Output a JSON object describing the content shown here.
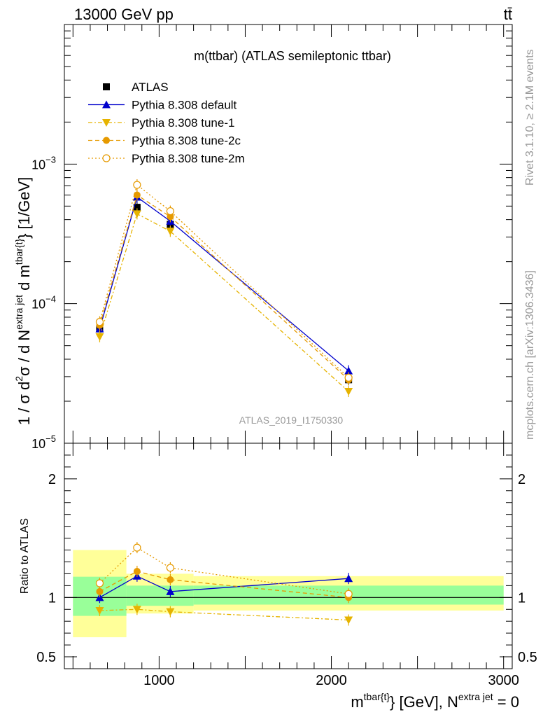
{
  "header": {
    "left": "13000 GeV pp",
    "right": "tt̄"
  },
  "side_text": {
    "rivet": "Rivet 3.1.10, ≥ 2.1M events",
    "mcplots": "mcplots.cern.ch [arXiv:1306.3436]"
  },
  "chart_data": [
    {
      "type": "line",
      "panel": "main",
      "title": "m(ttbar) (ATLAS semileptonic ttbar)",
      "watermark": "ATLAS_2019_I1750330",
      "ylabel": "1 / σ d²σ / d N^{extra jet} d m^{tbar{t}} [1/GeV]",
      "yscale": "log",
      "ylim": [
        1e-05,
        0.01
      ],
      "xlim": [
        450,
        3050
      ],
      "yticks": [
        {
          "base": "10",
          "exp": "−5",
          "value": 1e-05
        },
        {
          "base": "10",
          "exp": "−4",
          "value": 0.0001
        },
        {
          "base": "10",
          "exp": "−3",
          "value": 0.001
        }
      ],
      "legend_position": "top-left",
      "series": [
        {
          "name": "ATLAS",
          "color": "#000000",
          "marker": "square",
          "dash": "none",
          "x": [
            655,
            872,
            1065,
            2100
          ],
          "y": [
            6.6e-05,
            0.00049,
            0.00037,
            2.85e-05
          ],
          "xerr": [
            [
              500,
              810
            ],
            [
              810,
              935
            ],
            [
              935,
              1200
            ],
            [
              1200,
              3000
            ]
          ]
        },
        {
          "name": "Pythia 8.308 default",
          "color": "#0000cc",
          "marker": "triangle-up",
          "dash": "none",
          "x": [
            655,
            872,
            1065,
            2100
          ],
          "y": [
            6.6e-05,
            0.00058,
            0.00039,
            3.3e-05
          ]
        },
        {
          "name": "Pythia 8.308 tune-1",
          "color": "#e6b300",
          "marker": "triangle-down",
          "dash": "6,3,2,3",
          "x": [
            655,
            872,
            1065,
            2100
          ],
          "y": [
            5.8e-05,
            0.00044,
            0.00033,
            2.35e-05
          ]
        },
        {
          "name": "Pythia 8.308 tune-2c",
          "color": "#e69a00",
          "marker": "circle-filled",
          "dash": "6,4",
          "x": [
            655,
            872,
            1065,
            2100
          ],
          "y": [
            7e-05,
            0.0006,
            0.00042,
            2.85e-05
          ]
        },
        {
          "name": "Pythia 8.308 tune-2m",
          "color": "#e69a00",
          "marker": "circle-open",
          "dash": "2,3",
          "x": [
            655,
            872,
            1065,
            2100
          ],
          "y": [
            7.4e-05,
            0.00071,
            0.00046,
            2.95e-05
          ]
        }
      ]
    },
    {
      "type": "line",
      "panel": "ratio",
      "ylabel": "Ratio to ATLAS",
      "xlabel": "m^{tbar{t}} [GeV], N^{extra jet} = 0",
      "ylim": [
        0.4,
        2.3
      ],
      "xlim": [
        450,
        3050
      ],
      "yticks": [
        {
          "label": "0.5",
          "value": 0.5
        },
        {
          "label": "1",
          "value": 1
        },
        {
          "label": "2",
          "value": 2
        }
      ],
      "xticks": [
        {
          "label": "1000",
          "value": 1000
        },
        {
          "label": "2000",
          "value": 2000
        },
        {
          "label": "3000",
          "value": 3000
        }
      ],
      "bands": [
        {
          "x": [
            500,
            810
          ],
          "yellow": [
            0.665,
            1.4
          ],
          "green": [
            0.845,
            1.175
          ]
        },
        {
          "x": [
            810,
            1200
          ],
          "yellow": [
            0.865,
            1.2
          ],
          "green": [
            0.93,
            1.1
          ]
        },
        {
          "x": [
            1200,
            3000
          ],
          "yellow": [
            0.89,
            1.18
          ],
          "green": [
            0.94,
            1.1
          ]
        }
      ],
      "series": [
        {
          "name": "Pythia 8.308 default",
          "color": "#0000cc",
          "marker": "triangle-up",
          "dash": "none",
          "x": [
            655,
            872,
            1065,
            2100
          ],
          "y": [
            1.0,
            1.18,
            1.05,
            1.16
          ]
        },
        {
          "name": "Pythia 8.308 tune-1",
          "color": "#e6b300",
          "marker": "triangle-down",
          "dash": "6,3,2,3",
          "x": [
            655,
            872,
            1065,
            2100
          ],
          "y": [
            0.89,
            0.9,
            0.88,
            0.81
          ]
        },
        {
          "name": "Pythia 8.308 tune-2c",
          "color": "#e69a00",
          "marker": "circle-filled",
          "dash": "6,4",
          "x": [
            655,
            872,
            1065,
            2100
          ],
          "y": [
            1.05,
            1.22,
            1.15,
            1.0
          ]
        },
        {
          "name": "Pythia 8.308 tune-2m",
          "color": "#e69a00",
          "marker": "circle-open",
          "dash": "2,3",
          "x": [
            655,
            872,
            1065,
            2100
          ],
          "y": [
            1.12,
            1.42,
            1.25,
            1.03
          ]
        }
      ]
    }
  ]
}
